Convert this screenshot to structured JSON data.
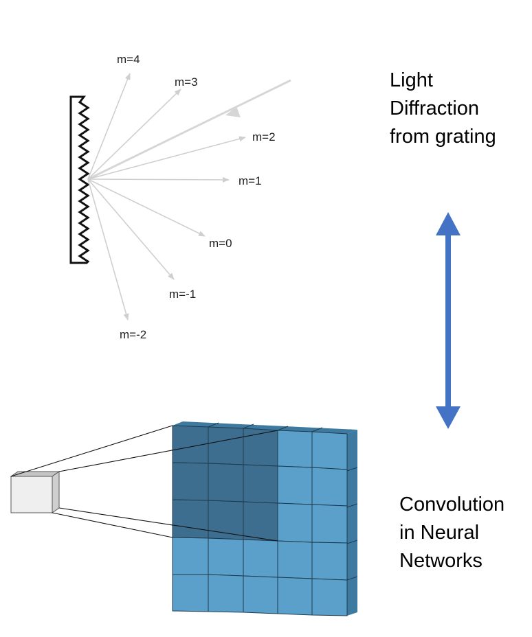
{
  "diffraction": {
    "orders": [
      {
        "label": "m=4"
      },
      {
        "label": "m=3"
      },
      {
        "label": "m=2"
      },
      {
        "label": "m=1"
      },
      {
        "label": "m=0"
      },
      {
        "label": "m=-1"
      },
      {
        "label": "m=-2"
      }
    ]
  },
  "captions": {
    "diffraction": [
      "Light",
      "Diffraction",
      "from grating"
    ],
    "convolution": [
      "Convolution",
      "in Neural",
      "Networks"
    ]
  },
  "colors": {
    "arrow": "#4472c4",
    "grid_light": "#5aa0cb",
    "grid_dark": "#3d6d8f",
    "grid_side": "#3e7aa0",
    "ray": "#cfcfcf"
  }
}
